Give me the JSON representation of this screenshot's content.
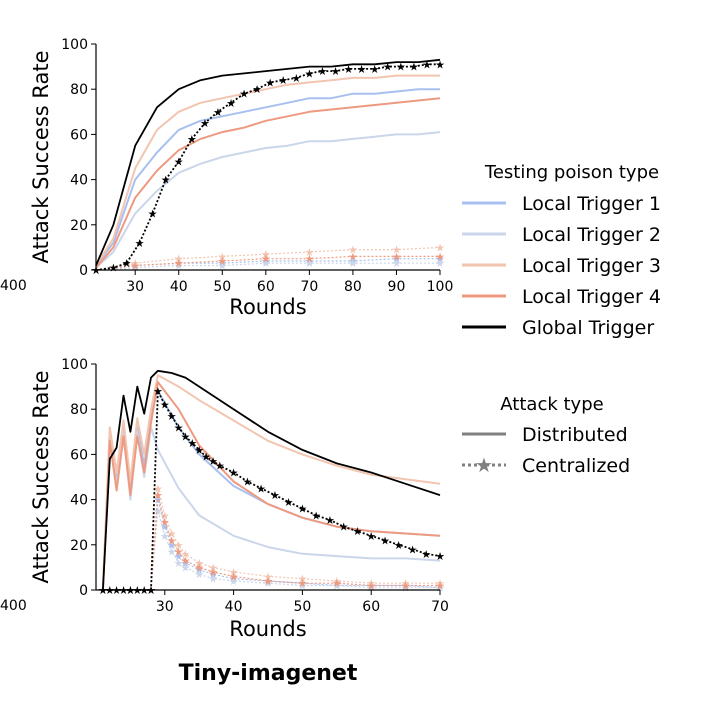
{
  "figure": {
    "title": "Tiny-imagenet",
    "colors": {
      "local_trigger_1": "#a8c0f0",
      "local_trigger_2": "#cbd6ea",
      "local_trigger_3": "#f2c5b0",
      "local_trigger_4": "#ee9a80",
      "global_trigger": "#000000"
    }
  },
  "legend": {
    "poison_title": "Testing poison type",
    "poison_entries": [
      "Local Trigger 1",
      "Local Trigger 2",
      "Local Trigger 3",
      "Local Trigger 4",
      "Global Trigger"
    ],
    "attack_title": "Attack type",
    "attack_entries": [
      "Distributed",
      "Centralized"
    ]
  },
  "chart_data": [
    {
      "type": "line",
      "panel": "top",
      "xlabel": "Rounds",
      "ylabel": "Attack Success Rate",
      "xlim": [
        21,
        100
      ],
      "ylim": [
        0,
        100
      ],
      "xticks": [
        30,
        40,
        50,
        60,
        70,
        80,
        90,
        100
      ],
      "yticks": [
        0,
        20,
        40,
        60,
        80,
        100
      ],
      "left_clipped_tick": "400",
      "series": [
        {
          "name": "Local Trigger 1",
          "attack": "Distributed",
          "x": [
            21,
            25,
            30,
            35,
            40,
            45,
            50,
            55,
            60,
            65,
            70,
            75,
            80,
            85,
            90,
            95,
            100
          ],
          "values": [
            2,
            12,
            40,
            52,
            62,
            66,
            68,
            70,
            72,
            74,
            76,
            76,
            78,
            78,
            79,
            80,
            80
          ]
        },
        {
          "name": "Local Trigger 2",
          "attack": "Distributed",
          "x": [
            21,
            25,
            30,
            35,
            40,
            45,
            50,
            55,
            60,
            65,
            70,
            75,
            80,
            85,
            90,
            95,
            100
          ],
          "values": [
            1,
            8,
            25,
            35,
            43,
            47,
            50,
            52,
            54,
            55,
            57,
            57,
            58,
            59,
            60,
            60,
            61
          ]
        },
        {
          "name": "Local Trigger 3",
          "attack": "Distributed",
          "x": [
            21,
            25,
            30,
            35,
            40,
            45,
            50,
            55,
            60,
            65,
            70,
            75,
            80,
            85,
            90,
            95,
            100
          ],
          "values": [
            2,
            14,
            45,
            62,
            70,
            74,
            76,
            78,
            80,
            82,
            83,
            84,
            85,
            85,
            86,
            86,
            86
          ]
        },
        {
          "name": "Local Trigger 4",
          "attack": "Distributed",
          "x": [
            21,
            25,
            30,
            35,
            40,
            45,
            50,
            55,
            60,
            65,
            70,
            75,
            80,
            85,
            90,
            95,
            100
          ],
          "values": [
            1,
            10,
            32,
            44,
            53,
            58,
            61,
            63,
            66,
            68,
            70,
            71,
            72,
            73,
            74,
            75,
            76
          ]
        },
        {
          "name": "Global Trigger",
          "attack": "Distributed",
          "x": [
            21,
            25,
            30,
            35,
            40,
            45,
            50,
            55,
            60,
            65,
            70,
            75,
            80,
            85,
            90,
            95,
            100
          ],
          "values": [
            2,
            20,
            55,
            72,
            80,
            84,
            86,
            87,
            88,
            89,
            90,
            90,
            91,
            91,
            92,
            92,
            93
          ]
        },
        {
          "name": "Local Trigger 1",
          "attack": "Centralized",
          "x": [
            21,
            30,
            40,
            50,
            60,
            70,
            80,
            90,
            100
          ],
          "values": [
            0,
            2,
            3,
            3,
            4,
            4,
            4,
            5,
            5
          ]
        },
        {
          "name": "Local Trigger 2",
          "attack": "Centralized",
          "x": [
            21,
            30,
            40,
            50,
            60,
            70,
            80,
            90,
            100
          ],
          "values": [
            0,
            1,
            2,
            2,
            3,
            3,
            3,
            3,
            3
          ]
        },
        {
          "name": "Local Trigger 3",
          "attack": "Centralized",
          "x": [
            21,
            30,
            40,
            50,
            60,
            70,
            80,
            90,
            100
          ],
          "values": [
            0,
            3,
            5,
            6,
            7,
            8,
            9,
            9,
            10
          ]
        },
        {
          "name": "Local Trigger 4",
          "attack": "Centralized",
          "x": [
            21,
            30,
            40,
            50,
            60,
            70,
            80,
            90,
            100
          ],
          "values": [
            0,
            2,
            3,
            4,
            5,
            5,
            6,
            6,
            6
          ]
        },
        {
          "name": "Global Trigger",
          "attack": "Centralized",
          "x": [
            21,
            25,
            28,
            31,
            34,
            37,
            40,
            43,
            46,
            49,
            52,
            55,
            58,
            61,
            64,
            67,
            70,
            73,
            76,
            79,
            82,
            85,
            88,
            91,
            94,
            97,
            100
          ],
          "values": [
            0,
            1,
            3,
            12,
            25,
            40,
            48,
            58,
            65,
            70,
            74,
            78,
            80,
            83,
            84,
            85,
            87,
            88,
            88,
            89,
            89,
            89,
            90,
            90,
            90,
            91,
            91
          ]
        }
      ]
    },
    {
      "type": "line",
      "panel": "bottom",
      "xlabel": "Rounds",
      "ylabel": "Attack Success Rate",
      "xlim": [
        20,
        70
      ],
      "ylim": [
        0,
        100
      ],
      "xticks": [
        30,
        40,
        50,
        60,
        70
      ],
      "yticks": [
        0,
        20,
        40,
        60,
        80,
        100
      ],
      "left_clipped_tick": "400",
      "series": [
        {
          "name": "Local Trigger 1",
          "attack": "Distributed",
          "x": [
            21,
            22,
            23,
            24,
            25,
            26,
            27,
            28,
            29,
            32,
            35,
            40,
            45,
            50,
            55,
            60,
            65,
            70
          ],
          "values": [
            0,
            70,
            50,
            72,
            45,
            72,
            55,
            78,
            88,
            72,
            60,
            46,
            38,
            32,
            28,
            26,
            25,
            24
          ]
        },
        {
          "name": "Local Trigger 2",
          "attack": "Distributed",
          "x": [
            21,
            22,
            23,
            24,
            25,
            26,
            27,
            28,
            29,
            32,
            35,
            40,
            45,
            50,
            55,
            60,
            65,
            70
          ],
          "values": [
            0,
            68,
            46,
            70,
            40,
            70,
            50,
            72,
            62,
            45,
            33,
            24,
            19,
            16,
            15,
            14,
            14,
            13
          ]
        },
        {
          "name": "Local Trigger 3",
          "attack": "Distributed",
          "x": [
            21,
            22,
            23,
            24,
            25,
            26,
            27,
            28,
            29,
            32,
            35,
            40,
            45,
            50,
            55,
            60,
            65,
            70
          ],
          "values": [
            0,
            72,
            52,
            75,
            48,
            76,
            60,
            80,
            95,
            90,
            84,
            75,
            66,
            60,
            55,
            51,
            49,
            47
          ]
        },
        {
          "name": "Local Trigger 4",
          "attack": "Distributed",
          "x": [
            21,
            22,
            23,
            24,
            25,
            26,
            27,
            28,
            29,
            32,
            35,
            40,
            45,
            50,
            55,
            60,
            65,
            70
          ],
          "values": [
            0,
            66,
            44,
            68,
            42,
            68,
            52,
            74,
            92,
            80,
            64,
            48,
            38,
            32,
            28,
            26,
            25,
            24
          ]
        },
        {
          "name": "Global Trigger",
          "attack": "Distributed",
          "x": [
            21,
            22,
            23,
            24,
            25,
            26,
            27,
            28,
            29,
            31,
            33,
            35,
            40,
            45,
            50,
            55,
            60,
            65,
            70
          ],
          "values": [
            0,
            58,
            63,
            86,
            70,
            90,
            78,
            94,
            97,
            96,
            94,
            90,
            80,
            70,
            62,
            56,
            52,
            47,
            42
          ]
        },
        {
          "name": "Local Trigger 1",
          "attack": "Centralized",
          "x": [
            21,
            25,
            28,
            29,
            30,
            31,
            32,
            33,
            35,
            37,
            40,
            45,
            50,
            55,
            60,
            65,
            70
          ],
          "values": [
            0,
            0,
            0,
            40,
            28,
            20,
            15,
            12,
            9,
            7,
            5,
            4,
            3,
            2,
            2,
            2,
            1
          ]
        },
        {
          "name": "Local Trigger 2",
          "attack": "Centralized",
          "x": [
            21,
            25,
            28,
            29,
            30,
            31,
            32,
            33,
            35,
            37,
            40,
            45,
            50,
            55,
            60,
            65,
            70
          ],
          "values": [
            0,
            0,
            0,
            35,
            24,
            17,
            12,
            10,
            7,
            5,
            4,
            3,
            2,
            2,
            1,
            1,
            1
          ]
        },
        {
          "name": "Local Trigger 3",
          "attack": "Centralized",
          "x": [
            21,
            25,
            28,
            29,
            30,
            31,
            32,
            33,
            35,
            37,
            40,
            45,
            50,
            55,
            60,
            65,
            70
          ],
          "values": [
            0,
            0,
            0,
            45,
            33,
            25,
            20,
            16,
            12,
            10,
            8,
            6,
            5,
            4,
            3,
            3,
            3
          ]
        },
        {
          "name": "Local Trigger 4",
          "attack": "Centralized",
          "x": [
            21,
            25,
            28,
            29,
            30,
            31,
            32,
            33,
            35,
            37,
            40,
            45,
            50,
            55,
            60,
            65,
            70
          ],
          "values": [
            0,
            0,
            0,
            42,
            30,
            22,
            17,
            13,
            10,
            8,
            6,
            4,
            3,
            3,
            2,
            2,
            2
          ]
        },
        {
          "name": "Global Trigger",
          "attack": "Centralized",
          "x": [
            21,
            22,
            23,
            24,
            25,
            26,
            27,
            28,
            29,
            30,
            31,
            32,
            33,
            34,
            35,
            36,
            37,
            38,
            40,
            42,
            44,
            46,
            48,
            50,
            52,
            54,
            56,
            58,
            60,
            62,
            64,
            66,
            68,
            70
          ],
          "values": [
            0,
            0,
            0,
            0,
            0,
            0,
            0,
            0,
            88,
            82,
            77,
            72,
            68,
            65,
            62,
            59,
            57,
            55,
            52,
            48,
            45,
            42,
            39,
            36,
            33,
            31,
            28,
            26,
            24,
            22,
            20,
            18,
            16,
            15
          ]
        }
      ]
    }
  ]
}
